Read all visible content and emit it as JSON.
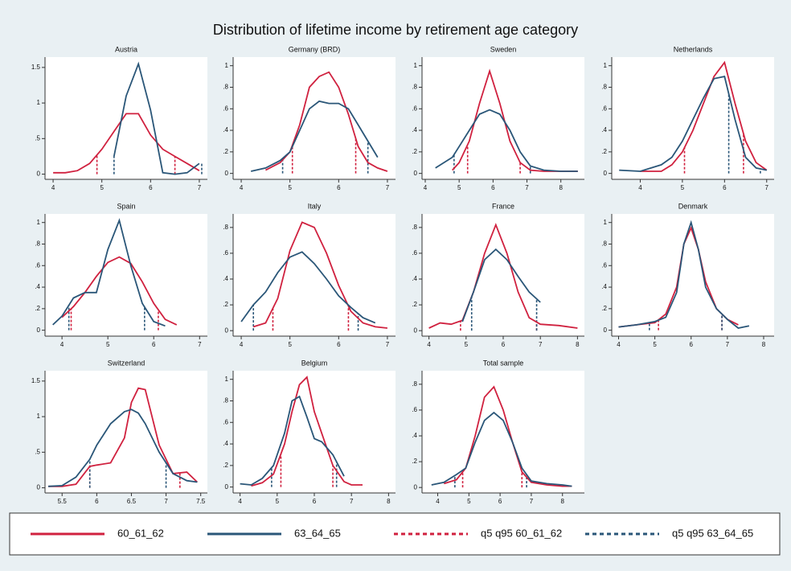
{
  "title": "Distribution of lifetime income by retirement age category",
  "legend": {
    "entries": [
      {
        "label": "60_61_62",
        "color": "#d0213f",
        "style": "solid"
      },
      {
        "label": "63_64_65",
        "color": "#2a5678",
        "style": "solid"
      },
      {
        "label": "q5 q95 60_61_62",
        "color": "#d0213f",
        "style": "dashed"
      },
      {
        "label": "q5 q95 63_64_65",
        "color": "#2a5678",
        "style": "dashed"
      }
    ]
  },
  "chart_data": [
    {
      "type": "line",
      "title": "Austria",
      "xlim": [
        3.9,
        7.1
      ],
      "xticks": [
        4,
        5,
        6,
        7
      ],
      "ylim": [
        -0.05,
        1.6
      ],
      "yticks": [
        0,
        {
          "value": 0.5,
          "label": ".5"
        },
        1,
        1.5
      ],
      "x": [
        4.0,
        4.25,
        4.5,
        4.75,
        5.0,
        5.25,
        5.5,
        5.75,
        6.0,
        6.25,
        6.5,
        6.75,
        7.0
      ],
      "series": [
        {
          "color": "#d0213f",
          "values": [
            0.02,
            0.02,
            0.05,
            0.15,
            0.35,
            0.6,
            0.85,
            0.85,
            0.55,
            0.35,
            0.25,
            0.15,
            0.05
          ]
        },
        {
          "color": "#2a5678",
          "values": [
            null,
            null,
            null,
            null,
            null,
            0.25,
            1.1,
            1.55,
            0.9,
            0.02,
            0,
            0.02,
            0.15
          ]
        }
      ],
      "quantiles": [
        {
          "color": "#d0213f",
          "values": [
            4.9,
            6.5
          ]
        },
        {
          "color": "#2a5678",
          "values": [
            5.25,
            7.05
          ]
        }
      ]
    },
    {
      "type": "line",
      "title": "Germany (BRD)",
      "xlim": [
        3.9,
        7.1
      ],
      "xticks": [
        4,
        5,
        6,
        7
      ],
      "ylim": [
        -0.04,
        1.05
      ],
      "yticks": [
        0,
        {
          "value": 0.2,
          "label": ".2"
        },
        {
          "value": 0.4,
          "label": ".4"
        },
        {
          "value": 0.6,
          "label": ".6"
        },
        {
          "value": 0.8,
          "label": ".8"
        },
        1
      ],
      "x": [
        4.2,
        4.5,
        4.8,
        5.0,
        5.2,
        5.4,
        5.6,
        5.8,
        6.0,
        6.2,
        6.4,
        6.6,
        6.8,
        7.0
      ],
      "series": [
        {
          "color": "#d0213f",
          "values": [
            null,
            0.03,
            0.1,
            0.2,
            0.45,
            0.8,
            0.9,
            0.94,
            0.8,
            0.55,
            0.25,
            0.1,
            0.05,
            0.02
          ]
        },
        {
          "color": "#2a5678",
          "values": [
            0.02,
            0.05,
            0.12,
            0.2,
            0.4,
            0.6,
            0.67,
            0.65,
            0.65,
            0.6,
            0.45,
            0.3,
            0.15,
            null
          ]
        }
      ],
      "quantiles": [
        {
          "color": "#d0213f",
          "values": [
            5.05,
            6.35
          ]
        },
        {
          "color": "#2a5678",
          "values": [
            4.85,
            6.6
          ]
        }
      ]
    },
    {
      "type": "line",
      "title": "Sweden",
      "xlim": [
        4,
        8.6
      ],
      "xticks": [
        4,
        5,
        6,
        7,
        8
      ],
      "ylim": [
        -0.04,
        1.05
      ],
      "yticks": [
        0,
        {
          "value": 0.2,
          "label": ".2"
        },
        {
          "value": 0.4,
          "label": ".4"
        },
        {
          "value": 0.6,
          "label": ".6"
        },
        {
          "value": 0.8,
          "label": ".8"
        },
        1
      ],
      "x": [
        4.3,
        4.8,
        5.0,
        5.3,
        5.6,
        5.9,
        6.2,
        6.5,
        6.8,
        7.1,
        7.5,
        8.0,
        8.5
      ],
      "series": [
        {
          "color": "#d0213f",
          "values": [
            null,
            0.03,
            0.1,
            0.3,
            0.65,
            0.95,
            0.65,
            0.3,
            0.1,
            0.03,
            0.02,
            0.02,
            0.02
          ]
        },
        {
          "color": "#2a5678",
          "values": [
            0.05,
            0.15,
            0.25,
            0.4,
            0.55,
            0.59,
            0.55,
            0.4,
            0.2,
            0.07,
            0.03,
            0.02,
            0.02
          ]
        }
      ],
      "quantiles": [
        {
          "color": "#d0213f",
          "values": [
            5.25,
            6.8
          ]
        },
        {
          "color": "#2a5678",
          "values": [
            4.85,
            7.1
          ]
        }
      ]
    },
    {
      "type": "line",
      "title": "Netherlands",
      "xlim": [
        3.4,
        7.1
      ],
      "xticks": [
        4,
        5,
        6,
        7
      ],
      "ylim": [
        -0.04,
        1.05
      ],
      "yticks": [
        0,
        {
          "value": 0.2,
          "label": ".2"
        },
        {
          "value": 0.4,
          "label": ".4"
        },
        {
          "value": 0.6,
          "label": ".6"
        },
        {
          "value": 0.8,
          "label": ".8"
        },
        1
      ],
      "x": [
        3.5,
        4.0,
        4.5,
        4.75,
        5.0,
        5.25,
        5.5,
        5.75,
        6.0,
        6.25,
        6.5,
        6.75,
        7.0
      ],
      "series": [
        {
          "color": "#d0213f",
          "values": [
            null,
            0.02,
            0.02,
            0.08,
            0.2,
            0.4,
            0.65,
            0.9,
            1.03,
            0.65,
            0.3,
            0.1,
            0.03
          ]
        },
        {
          "color": "#2a5678",
          "values": [
            0.03,
            0.02,
            0.08,
            0.15,
            0.3,
            0.5,
            0.7,
            0.88,
            0.9,
            0.5,
            0.15,
            0.05,
            0.03
          ]
        }
      ],
      "quantiles": [
        {
          "color": "#d0213f",
          "values": [
            5.05,
            6.45
          ]
        },
        {
          "color": "#2a5678",
          "values": [
            6.1,
            6.85
          ]
        }
      ]
    },
    {
      "type": "line",
      "title": "Spain",
      "xlim": [
        3.7,
        7.1
      ],
      "xticks": [
        4,
        5,
        6,
        7
      ],
      "ylim": [
        -0.04,
        1.05
      ],
      "yticks": [
        0,
        {
          "value": 0.2,
          "label": ".2"
        },
        {
          "value": 0.4,
          "label": ".4"
        },
        {
          "value": 0.6,
          "label": ".6"
        },
        {
          "value": 0.8,
          "label": ".8"
        },
        1
      ],
      "x": [
        3.8,
        4.0,
        4.25,
        4.5,
        4.75,
        5.0,
        5.25,
        5.5,
        5.75,
        6.0,
        6.25,
        6.5
      ],
      "series": [
        {
          "color": "#d0213f",
          "values": [
            null,
            0.12,
            0.22,
            0.35,
            0.5,
            0.63,
            0.68,
            0.62,
            0.45,
            0.25,
            0.1,
            0.05
          ]
        },
        {
          "color": "#2a5678",
          "values": [
            0.05,
            0.13,
            0.3,
            0.35,
            0.35,
            0.75,
            1.02,
            0.6,
            0.25,
            0.08,
            0.04,
            null
          ]
        }
      ],
      "quantiles": [
        {
          "color": "#d0213f",
          "values": [
            4.2,
            6.1
          ]
        },
        {
          "color": "#2a5678",
          "values": [
            4.15,
            5.8
          ]
        }
      ]
    },
    {
      "type": "line",
      "title": "Italy",
      "xlim": [
        3.9,
        7.1
      ],
      "xticks": [
        4,
        5,
        6,
        7
      ],
      "ylim": [
        -0.03,
        0.88
      ],
      "yticks": [
        0,
        {
          "value": 0.2,
          "label": ".2"
        },
        {
          "value": 0.4,
          "label": ".4"
        },
        {
          "value": 0.6,
          "label": ".6"
        },
        {
          "value": 0.8,
          "label": ".8"
        }
      ],
      "x": [
        4.0,
        4.25,
        4.5,
        4.75,
        5.0,
        5.25,
        5.5,
        5.75,
        6.0,
        6.25,
        6.5,
        6.75,
        7.0
      ],
      "series": [
        {
          "color": "#d0213f",
          "values": [
            null,
            0.03,
            0.06,
            0.25,
            0.62,
            0.84,
            0.8,
            0.6,
            0.35,
            0.15,
            0.06,
            0.03,
            0.02
          ]
        },
        {
          "color": "#2a5678",
          "values": [
            0.07,
            0.2,
            0.3,
            0.45,
            0.57,
            0.61,
            0.52,
            0.4,
            0.27,
            0.18,
            0.1,
            0.06,
            null
          ]
        }
      ],
      "quantiles": [
        {
          "color": "#d0213f",
          "values": [
            4.65,
            6.2
          ]
        },
        {
          "color": "#2a5678",
          "values": [
            4.25,
            6.4
          ]
        }
      ]
    },
    {
      "type": "line",
      "title": "France",
      "xlim": [
        3.9,
        8.1
      ],
      "xticks": [
        4,
        5,
        6,
        7,
        8
      ],
      "ylim": [
        -0.03,
        0.88
      ],
      "yticks": [
        0,
        {
          "value": 0.2,
          "label": ".2"
        },
        {
          "value": 0.4,
          "label": ".4"
        },
        {
          "value": 0.6,
          "label": ".6"
        },
        {
          "value": 0.8,
          "label": ".8"
        }
      ],
      "x": [
        4.0,
        4.3,
        4.6,
        4.9,
        5.2,
        5.5,
        5.8,
        6.1,
        6.4,
        6.7,
        7.0,
        7.5,
        8.0
      ],
      "series": [
        {
          "color": "#d0213f",
          "values": [
            0.02,
            0.06,
            0.05,
            0.08,
            0.3,
            0.6,
            0.82,
            0.6,
            0.3,
            0.1,
            0.05,
            0.04,
            0.02
          ]
        },
        {
          "color": "#2a5678",
          "values": [
            null,
            null,
            null,
            0.07,
            0.3,
            0.55,
            0.63,
            0.55,
            0.42,
            0.3,
            0.22,
            null,
            null
          ]
        }
      ],
      "quantiles": [
        {
          "color": "#d0213f",
          "values": [
            4.85,
            6.9
          ]
        },
        {
          "color": "#2a5678",
          "values": [
            5.15,
            6.9
          ]
        }
      ]
    },
    {
      "type": "line",
      "title": "Denmark",
      "xlim": [
        3.9,
        8.2
      ],
      "xticks": [
        4,
        5,
        6,
        7,
        8
      ],
      "ylim": [
        -0.04,
        1.05
      ],
      "yticks": [
        0,
        {
          "value": 0.2,
          "label": ".2"
        },
        {
          "value": 0.4,
          "label": ".4"
        },
        {
          "value": 0.6,
          "label": ".6"
        },
        {
          "value": 0.8,
          "label": ".8"
        },
        1
      ],
      "x": [
        4.0,
        4.5,
        5.0,
        5.3,
        5.6,
        5.8,
        6.0,
        6.2,
        6.4,
        6.7,
        7.0,
        7.3,
        7.6
      ],
      "series": [
        {
          "color": "#d0213f",
          "values": [
            0.03,
            0.05,
            0.07,
            0.15,
            0.4,
            0.8,
            0.95,
            0.75,
            0.45,
            0.2,
            0.1,
            0.05,
            null
          ]
        },
        {
          "color": "#2a5678",
          "values": [
            0.03,
            0.05,
            0.08,
            0.12,
            0.35,
            0.8,
            1.0,
            0.75,
            0.4,
            0.2,
            0.1,
            0.02,
            0.04
          ]
        }
      ],
      "quantiles": [
        {
          "color": "#d0213f",
          "values": [
            5.1,
            6.85
          ]
        },
        {
          "color": "#2a5678",
          "values": [
            4.85,
            6.85
          ]
        }
      ]
    },
    {
      "type": "line",
      "title": "Switzerland",
      "xlim": [
        5.3,
        7.55
      ],
      "xticks": [
        5.5,
        6,
        6.5,
        7,
        7.5
      ],
      "ylim": [
        -0.05,
        1.6
      ],
      "yticks": [
        0,
        {
          "value": 0.5,
          "label": ".5"
        },
        1,
        1.5
      ],
      "x": [
        5.3,
        5.5,
        5.7,
        5.9,
        6.0,
        6.2,
        6.4,
        6.5,
        6.6,
        6.7,
        6.9,
        7.1,
        7.3,
        7.45
      ],
      "series": [
        {
          "color": "#d0213f",
          "values": [
            0.02,
            0.02,
            0.05,
            0.3,
            0.32,
            0.35,
            0.7,
            1.2,
            1.4,
            1.38,
            0.6,
            0.2,
            0.22,
            0.08
          ]
        },
        {
          "color": "#2a5678",
          "values": [
            0.02,
            0.03,
            0.15,
            0.4,
            0.6,
            0.9,
            1.07,
            1.1,
            1.05,
            0.9,
            0.5,
            0.2,
            0.1,
            0.08
          ]
        }
      ],
      "quantiles": [
        {
          "color": "#d0213f",
          "values": [
            5.9,
            7.2
          ]
        },
        {
          "color": "#2a5678",
          "values": [
            5.9,
            7.0
          ]
        }
      ]
    },
    {
      "type": "line",
      "title": "Belgium",
      "xlim": [
        3.9,
        8.1
      ],
      "xticks": [
        4,
        5,
        6,
        7,
        8
      ],
      "ylim": [
        -0.04,
        1.05
      ],
      "yticks": [
        0,
        {
          "value": 0.2,
          "label": ".2"
        },
        {
          "value": 0.4,
          "label": ".4"
        },
        {
          "value": 0.6,
          "label": ".6"
        },
        {
          "value": 0.8,
          "label": ".8"
        },
        1
      ],
      "x": [
        4.0,
        4.3,
        4.6,
        4.9,
        5.2,
        5.4,
        5.6,
        5.8,
        6.0,
        6.2,
        6.5,
        6.8,
        7.0,
        7.3
      ],
      "series": [
        {
          "color": "#d0213f",
          "values": [
            null,
            0.01,
            0.04,
            0.12,
            0.4,
            0.7,
            0.95,
            1.02,
            0.7,
            0.5,
            0.2,
            0.05,
            0.02,
            0.02
          ]
        },
        {
          "color": "#2a5678",
          "values": [
            0.03,
            0.02,
            0.08,
            0.2,
            0.5,
            0.8,
            0.84,
            0.65,
            0.45,
            0.42,
            0.3,
            0.1,
            null,
            null
          ]
        }
      ],
      "quantiles": [
        {
          "color": "#d0213f",
          "values": [
            5.1,
            6.5
          ]
        },
        {
          "color": "#2a5678",
          "values": [
            4.85,
            6.6
          ]
        }
      ]
    },
    {
      "type": "line",
      "title": "Total sample",
      "xlim": [
        3.6,
        8.6
      ],
      "xticks": [
        4,
        5,
        6,
        7,
        8
      ],
      "ylim": [
        -0.03,
        0.88
      ],
      "yticks": [
        0,
        {
          "value": 0.2,
          "label": ".2"
        },
        {
          "value": 0.4,
          "label": ".4"
        },
        {
          "value": 0.6,
          "label": ".6"
        },
        {
          "value": 0.8,
          "label": ".8"
        }
      ],
      "x": [
        3.8,
        4.2,
        4.6,
        4.9,
        5.2,
        5.5,
        5.8,
        6.1,
        6.4,
        6.7,
        7.0,
        7.5,
        8.0,
        8.3
      ],
      "series": [
        {
          "color": "#d0213f",
          "values": [
            null,
            0.03,
            0.06,
            0.15,
            0.4,
            0.7,
            0.78,
            0.6,
            0.35,
            0.12,
            0.04,
            0.02,
            0.01,
            0.01
          ]
        },
        {
          "color": "#2a5678",
          "values": [
            0.02,
            0.04,
            0.1,
            0.15,
            0.35,
            0.52,
            0.58,
            0.52,
            0.35,
            0.15,
            0.05,
            0.03,
            0.02,
            0.01
          ]
        }
      ],
      "quantiles": [
        {
          "color": "#d0213f",
          "values": [
            4.8,
            6.7
          ]
        },
        {
          "color": "#2a5678",
          "values": [
            4.55,
            6.85
          ]
        }
      ]
    }
  ]
}
